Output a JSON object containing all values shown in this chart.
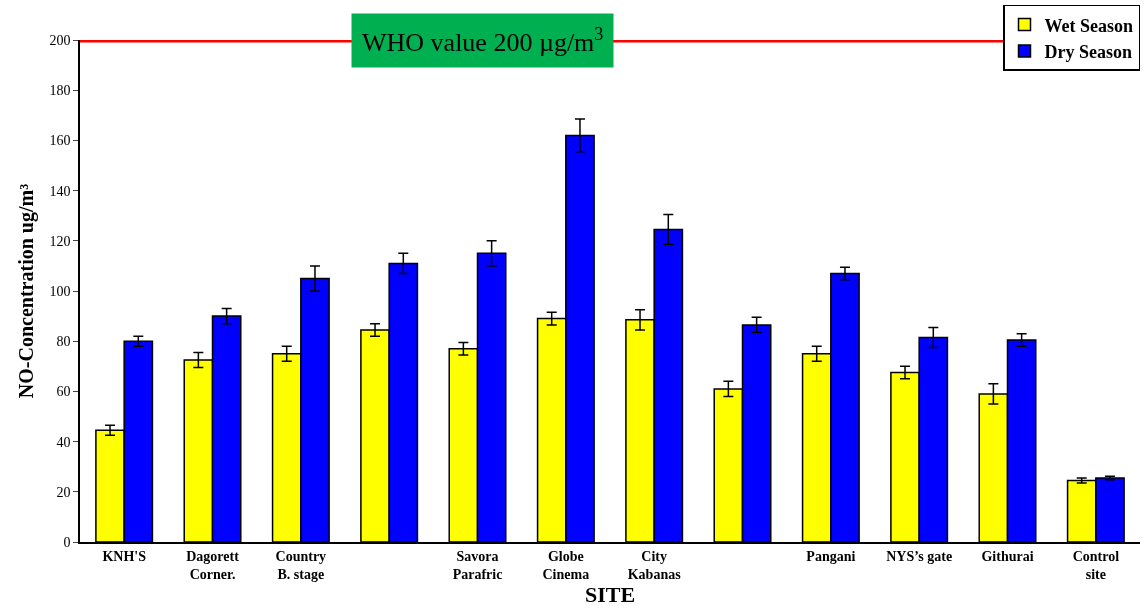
{
  "chart_data": {
    "type": "bar",
    "xlabel": "SITE",
    "ylabel": "NO-Concentration ug/m³",
    "categories": [
      "KNH'S",
      "Dagorett\nCorner.",
      "Country\nB. stage",
      null,
      "Savora\nParafric",
      "Globe\nCinema",
      "City\nKabanas",
      null,
      "Pangani",
      "NYS’s gate",
      "Githurai",
      "Control\nsite"
    ],
    "series": [
      {
        "name": "Wet Season",
        "color": "#ffff00",
        "values": [
          44.5,
          72.5,
          75,
          84.5,
          77,
          89,
          88.5,
          61,
          75,
          67.5,
          59,
          24.5
        ],
        "errors": [
          2,
          3,
          3,
          2.5,
          2.5,
          2.5,
          4,
          3,
          3,
          2.5,
          4,
          1
        ]
      },
      {
        "name": "Dry Season",
        "color": "#0000ff",
        "values": [
          80,
          90,
          105,
          111,
          115,
          162,
          124.5,
          86.5,
          107,
          81.5,
          80.5,
          25.5
        ],
        "errors": [
          2,
          3,
          5,
          4,
          5,
          6.5,
          6,
          3,
          2.5,
          4,
          2.5,
          0.7
        ]
      }
    ],
    "ylim": [
      0,
      200
    ],
    "yticks": [
      0,
      20,
      40,
      60,
      80,
      100,
      120,
      140,
      160,
      180,
      200
    ],
    "grid": false,
    "legend": "top right",
    "ref_lines": [
      {
        "axis": "y",
        "value": 200,
        "label": "WHO value 200 µg/m$^{3}$",
        "color": "#ff0000"
      }
    ]
  }
}
